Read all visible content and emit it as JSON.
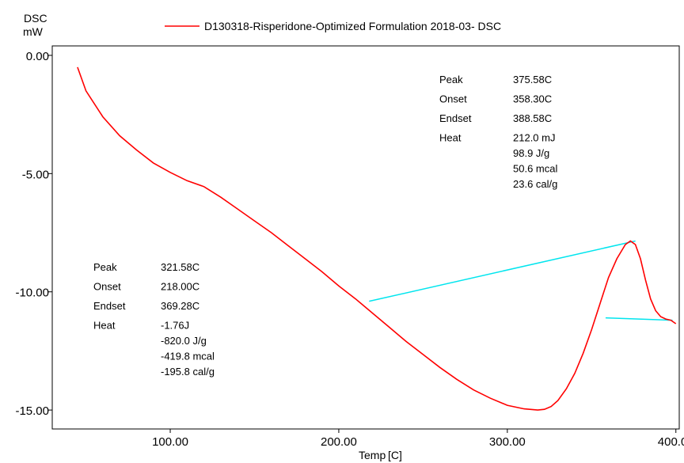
{
  "chart_data": {
    "type": "line",
    "title": "",
    "ylabel": "DSC",
    "yunit": "mW",
    "xlabel": "Temp",
    "xunit": "[C]",
    "xlim": [
      30,
      402
    ],
    "ylim": [
      -15.8,
      0.4
    ],
    "x_ticks": [
      "100.00",
      "200.00",
      "300.00",
      "400.00"
    ],
    "x_tick_values": [
      100,
      200,
      300,
      400
    ],
    "y_ticks": [
      "0.00",
      "-5.00",
      "-10.00",
      "-15.00"
    ],
    "y_tick_values": [
      0,
      -5,
      -10,
      -15
    ],
    "grid": false,
    "legend_position": "top",
    "colors": {
      "series": "#ff0000",
      "baseline": "#00e5ee"
    },
    "series": [
      {
        "name": "D130318-Risperidone-Optimized Formulation 2018-03-  DSC",
        "x": [
          45,
          50,
          60,
          70,
          80,
          90,
          100,
          110,
          120,
          130,
          140,
          150,
          160,
          170,
          180,
          190,
          200,
          210,
          220,
          230,
          240,
          250,
          260,
          270,
          280,
          290,
          300,
          310,
          318,
          322,
          326,
          330,
          335,
          340,
          345,
          350,
          355,
          360,
          365,
          370,
          373,
          376,
          379,
          382,
          385,
          388,
          391,
          394,
          397,
          400
        ],
        "y": [
          -0.5,
          -1.5,
          -2.6,
          -3.4,
          -4.0,
          -4.55,
          -4.95,
          -5.3,
          -5.55,
          -6.0,
          -6.5,
          -7.0,
          -7.5,
          -8.05,
          -8.6,
          -9.15,
          -9.75,
          -10.3,
          -10.9,
          -11.5,
          -12.1,
          -12.65,
          -13.2,
          -13.7,
          -14.15,
          -14.5,
          -14.8,
          -14.95,
          -15.0,
          -14.97,
          -14.85,
          -14.6,
          -14.1,
          -13.45,
          -12.6,
          -11.6,
          -10.5,
          -9.4,
          -8.6,
          -8.0,
          -7.85,
          -8.0,
          -8.6,
          -9.5,
          -10.3,
          -10.8,
          -11.05,
          -11.15,
          -11.2,
          -11.35
        ]
      }
    ],
    "baselines": [
      {
        "x": [
          218.0,
          376.0
        ],
        "y": [
          -10.4,
          -7.85
        ]
      },
      {
        "x": [
          358.3,
          398.0
        ],
        "y": [
          -11.1,
          -11.2
        ]
      }
    ],
    "annotations": [
      {
        "labels": [
          "Peak",
          "Onset",
          "Endset",
          "Heat"
        ],
        "values": [
          "375.58C",
          "358.30C",
          "388.58C",
          "212.0 mJ",
          "98.9 J/g",
          "50.6 mcal",
          "23.6 cal/g"
        ],
        "position": "top-right"
      },
      {
        "labels": [
          "Peak",
          "Onset",
          "Endset",
          "Heat"
        ],
        "values": [
          "321.58C",
          "218.00C",
          "369.28C",
          "-1.76J",
          "-820.0 J/g",
          "-419.8 mcal",
          "-195.8 cal/g"
        ],
        "position": "bottom-left"
      }
    ]
  }
}
